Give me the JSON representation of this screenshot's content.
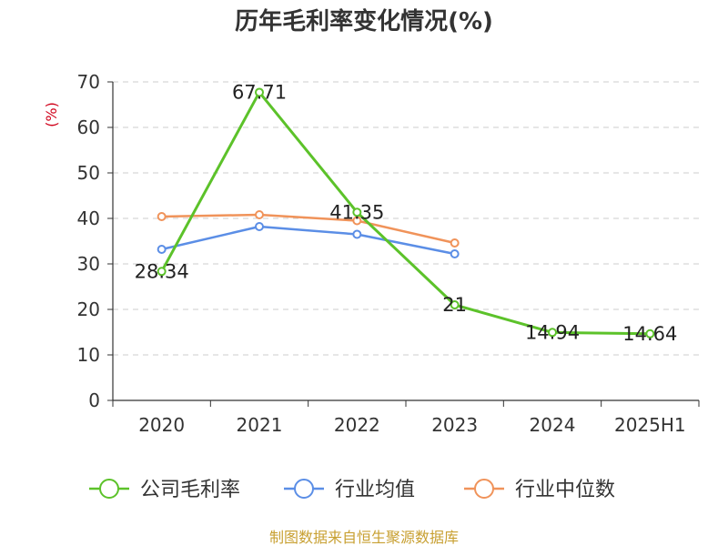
{
  "chart_data": {
    "type": "line",
    "title": "历年毛利率变化情况(%)",
    "ylabel": "(%)",
    "xlabel": "",
    "categories": [
      "2020",
      "2021",
      "2022",
      "2023",
      "2024",
      "2025H1"
    ],
    "ylim": [
      0,
      70
    ],
    "yticks": [
      0,
      10,
      20,
      30,
      40,
      50,
      60,
      70
    ],
    "grid": true,
    "legend_position": "bottom",
    "series": [
      {
        "name": "公司毛利率",
        "color": "#5cc22a",
        "values": [
          28.34,
          67.71,
          41.35,
          21,
          14.94,
          14.64
        ],
        "labels": [
          "28.34",
          "67.71",
          "41.35",
          "21",
          "14.94",
          "14.64"
        ]
      },
      {
        "name": "行业均值",
        "color": "#5b8ee6",
        "values": [
          33.2,
          38.2,
          36.5,
          32.2,
          null,
          null
        ]
      },
      {
        "name": "行业中位数",
        "color": "#f0935a",
        "values": [
          40.4,
          40.8,
          39.5,
          34.6,
          null,
          null
        ]
      }
    ]
  },
  "footer": {
    "source": "制图数据来自恒生聚源数据库"
  }
}
